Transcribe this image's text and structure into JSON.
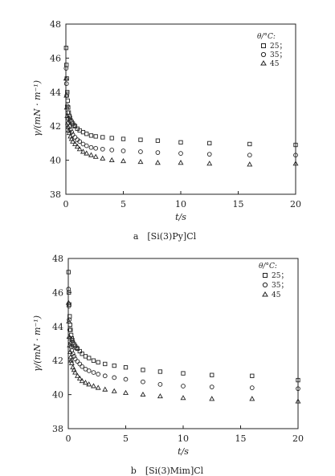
{
  "chart_data": [
    {
      "type": "scatter",
      "caption": "a　[Si(3)Py]Cl",
      "xlabel": "t/s",
      "ylabel": "γ/(mN · m⁻¹)",
      "xlim": [
        0,
        20
      ],
      "ylim": [
        38,
        48
      ],
      "xticks": [
        "0",
        "5",
        "10",
        "15",
        "20"
      ],
      "yticks": [
        "38",
        "40",
        "42",
        "44",
        "46",
        "48"
      ],
      "legend_title": "θ/°C:",
      "legend_position": "top-right",
      "series": [
        {
          "name": "25；",
          "marker": "square",
          "x": [
            0.02,
            0.05,
            0.08,
            0.12,
            0.16,
            0.2,
            0.25,
            0.3,
            0.35,
            0.4,
            0.5,
            0.6,
            0.7,
            0.8,
            1.0,
            1.2,
            1.5,
            1.8,
            2.2,
            2.6,
            3.2,
            4.0,
            5.0,
            6.5,
            8.0,
            10.0,
            12.5,
            16.0,
            20.0
          ],
          "y": [
            46.6,
            45.6,
            44.8,
            44.0,
            43.5,
            43.1,
            42.8,
            42.6,
            42.5,
            42.35,
            42.25,
            42.15,
            42.05,
            42.0,
            41.85,
            41.75,
            41.65,
            41.55,
            41.45,
            41.4,
            41.35,
            41.3,
            41.25,
            41.2,
            41.15,
            41.05,
            41.0,
            40.95,
            40.9
          ]
        },
        {
          "name": "35；",
          "marker": "circle",
          "x": [
            0.02,
            0.05,
            0.08,
            0.12,
            0.16,
            0.2,
            0.25,
            0.3,
            0.4,
            0.5,
            0.6,
            0.8,
            1.0,
            1.2,
            1.5,
            1.8,
            2.2,
            2.6,
            3.2,
            4.0,
            5.0,
            6.5,
            8.0,
            10.0,
            12.5,
            16.0,
            20.0
          ],
          "y": [
            45.4,
            44.5,
            43.8,
            43.2,
            42.8,
            42.45,
            42.2,
            42.0,
            41.8,
            41.65,
            41.5,
            41.35,
            41.2,
            41.1,
            40.95,
            40.85,
            40.75,
            40.7,
            40.65,
            40.6,
            40.55,
            40.5,
            40.45,
            40.4,
            40.35,
            40.3,
            40.3
          ]
        },
        {
          "name": "45",
          "marker": "triangle",
          "x": [
            0.02,
            0.05,
            0.08,
            0.12,
            0.16,
            0.2,
            0.25,
            0.3,
            0.4,
            0.5,
            0.6,
            0.8,
            1.0,
            1.2,
            1.5,
            1.8,
            2.2,
            2.6,
            3.2,
            4.0,
            5.0,
            6.5,
            8.0,
            10.0,
            12.5,
            16.0,
            20.0
          ],
          "y": [
            44.8,
            43.8,
            43.1,
            42.6,
            42.2,
            41.95,
            41.75,
            41.6,
            41.4,
            41.25,
            41.1,
            40.95,
            40.8,
            40.65,
            40.5,
            40.4,
            40.3,
            40.2,
            40.1,
            40.0,
            39.95,
            39.9,
            39.85,
            39.85,
            39.8,
            39.75,
            39.8
          ]
        }
      ]
    },
    {
      "type": "scatter",
      "caption": "b　[Si(3)Mim]Cl",
      "xlabel": "t/s",
      "ylabel": "γ/(mN · m⁻¹)",
      "xlim": [
        0,
        20
      ],
      "ylim": [
        38,
        48
      ],
      "xticks": [
        "0",
        "5",
        "10",
        "15",
        "20"
      ],
      "yticks": [
        "38",
        "40",
        "42",
        "44",
        "46",
        "48"
      ],
      "legend_title": "θ/°C:",
      "legend_position": "top-right",
      "series": [
        {
          "name": "25；",
          "marker": "square",
          "x": [
            0.02,
            0.05,
            0.08,
            0.12,
            0.16,
            0.2,
            0.25,
            0.3,
            0.35,
            0.4,
            0.5,
            0.6,
            0.7,
            0.8,
            1.0,
            1.2,
            1.5,
            1.8,
            2.2,
            2.6,
            3.2,
            4.0,
            5.0,
            6.5,
            8.0,
            10.0,
            12.5,
            16.0,
            20.0
          ],
          "y": [
            47.2,
            46.0,
            45.3,
            44.6,
            44.1,
            43.8,
            43.5,
            43.3,
            43.2,
            43.05,
            42.95,
            42.85,
            42.75,
            42.7,
            42.55,
            42.4,
            42.25,
            42.15,
            42.0,
            41.9,
            41.8,
            41.7,
            41.6,
            41.45,
            41.35,
            41.25,
            41.15,
            41.1,
            40.85
          ]
        },
        {
          "name": "35；",
          "marker": "circle",
          "x": [
            0.02,
            0.05,
            0.08,
            0.12,
            0.16,
            0.2,
            0.25,
            0.3,
            0.4,
            0.5,
            0.6,
            0.8,
            1.0,
            1.2,
            1.5,
            1.8,
            2.2,
            2.6,
            3.2,
            4.0,
            5.0,
            6.5,
            8.0,
            10.0,
            12.5,
            16.0,
            20.0
          ],
          "y": [
            46.2,
            45.2,
            44.4,
            43.8,
            43.3,
            43.0,
            42.8,
            42.6,
            42.4,
            42.25,
            42.1,
            41.95,
            41.8,
            41.65,
            41.5,
            41.4,
            41.3,
            41.2,
            41.1,
            41.0,
            40.9,
            40.75,
            40.6,
            40.5,
            40.45,
            40.4,
            40.35
          ]
        },
        {
          "name": "45",
          "marker": "triangle",
          "x": [
            0.02,
            0.05,
            0.08,
            0.12,
            0.16,
            0.2,
            0.25,
            0.3,
            0.4,
            0.5,
            0.6,
            0.8,
            1.0,
            1.2,
            1.5,
            1.8,
            2.2,
            2.6,
            3.2,
            4.0,
            5.0,
            6.5,
            8.0,
            10.0,
            12.5,
            16.0,
            20.0
          ],
          "y": [
            45.4,
            44.3,
            43.4,
            42.9,
            42.5,
            42.2,
            42.0,
            41.85,
            41.6,
            41.45,
            41.3,
            41.1,
            40.95,
            40.8,
            40.7,
            40.6,
            40.5,
            40.4,
            40.3,
            40.2,
            40.1,
            40.0,
            39.9,
            39.8,
            39.75,
            39.75,
            39.6
          ]
        }
      ]
    }
  ]
}
